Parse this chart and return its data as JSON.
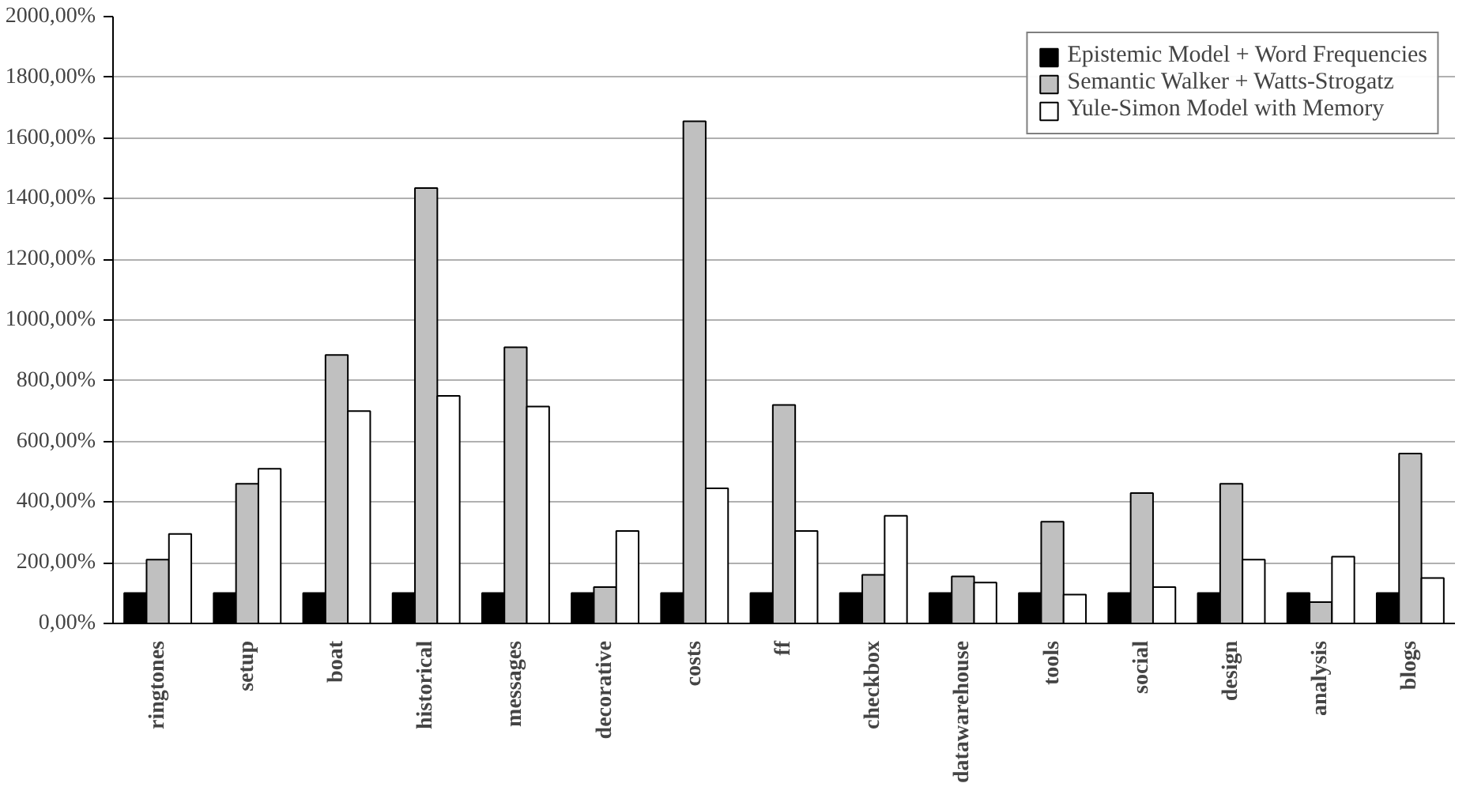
{
  "chart_data": {
    "type": "bar",
    "categories": [
      "ringtones",
      "setup",
      "boat",
      "historical",
      "messages",
      "decorative",
      "costs",
      "ff",
      "checkbox",
      "datawarehouse",
      "tools",
      "social",
      "design",
      "analysis",
      "blogs"
    ],
    "series": [
      {
        "name": "Epistemic Model + Word Frequencies",
        "color": "#000000",
        "values": [
          100,
          100,
          100,
          100,
          100,
          100,
          100,
          100,
          100,
          100,
          100,
          100,
          100,
          100,
          100
        ]
      },
      {
        "name": "Semantic Walker + Watts-Strogatz",
        "color": "#c0c0c0",
        "values": [
          210,
          460,
          885,
          1435,
          910,
          120,
          1655,
          720,
          160,
          155,
          335,
          430,
          460,
          70,
          560
        ]
      },
      {
        "name": "Yule-Simon Model with Memory",
        "color": "#ffffff",
        "values": [
          295,
          510,
          700,
          750,
          715,
          305,
          445,
          305,
          355,
          135,
          95,
          120,
          210,
          220,
          150
        ]
      }
    ],
    "ylim": [
      0,
      2000
    ],
    "yticks": [
      {
        "value": 0,
        "label": "0,00%"
      },
      {
        "value": 200,
        "label": "200,00%"
      },
      {
        "value": 400,
        "label": "400,00%"
      },
      {
        "value": 600,
        "label": "600,00%"
      },
      {
        "value": 800,
        "label": "800,00%"
      },
      {
        "value": 1000,
        "label": "1000,00%"
      },
      {
        "value": 1200,
        "label": "1200,00%"
      },
      {
        "value": 1400,
        "label": "1400,00%"
      },
      {
        "value": 1600,
        "label": "1600,00%"
      },
      {
        "value": 1800,
        "label": "1800,00%"
      },
      {
        "value": 2000,
        "label": "2000,00%"
      }
    ],
    "grid": "y",
    "legend": "top right"
  }
}
